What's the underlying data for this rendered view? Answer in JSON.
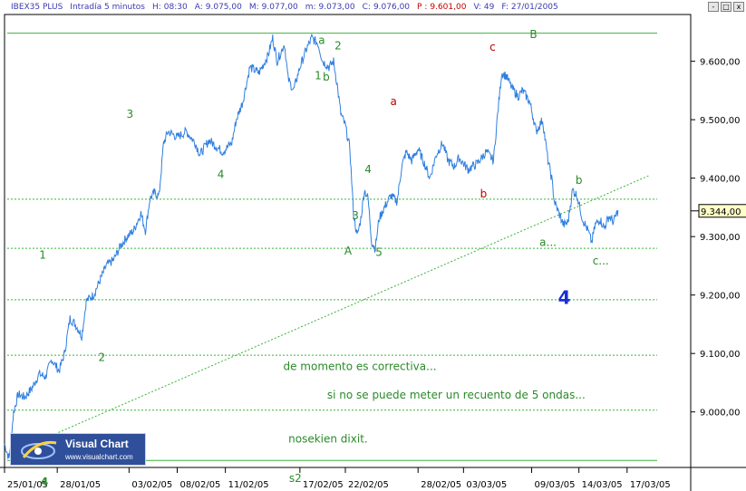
{
  "header": {
    "symbol": "IBEX35 PLUS",
    "interval": "Intradía 5 minutos",
    "fields": [
      {
        "label": "H:",
        "value": "08:30"
      },
      {
        "label": "A:",
        "value": "9.075,00"
      },
      {
        "label": "M:",
        "value": "9.077,00"
      },
      {
        "label": "m:",
        "value": "9.073,00"
      },
      {
        "label": "C:",
        "value": "9.076,00"
      }
    ],
    "p_label": "P :",
    "p_value": "9.601,00",
    "v_label": "V:",
    "v_value": "49",
    "f_label": "F:",
    "f_value": "27/01/2005"
  },
  "window_buttons": [
    "-",
    "□",
    "x"
  ],
  "logo": {
    "title": "Visual Chart",
    "url": "www.visualchart.com"
  },
  "chart_data": {
    "type": "line",
    "title": "",
    "xlabel": "",
    "ylabel": "",
    "ylim": [
      8905,
      9680
    ],
    "x_ticks": [
      "25/01/05",
      "28/01/05",
      "03/02/05",
      "08/02/05",
      "11/02/05",
      "17/02/05",
      "22/02/05",
      "28/02/05",
      "03/03/05",
      "09/03/05",
      "14/03/05",
      "17/03/05"
    ],
    "x_tick_index": [
      0,
      58,
      137,
      190,
      243,
      325,
      375,
      455,
      505,
      580,
      632,
      685
    ],
    "y_ticks": [
      9000,
      9100,
      9200,
      9300,
      9400,
      9500,
      9600
    ],
    "y_tick_labels": [
      "9.000,00",
      "9.100,00",
      "9.200,00",
      "9.300,00",
      "9.400,00",
      "9.500,00",
      "9.600,00"
    ],
    "last_price": 9344,
    "last_price_label": "9.344,00",
    "x_range": [
      0,
      755
    ],
    "series": [
      {
        "color": "#2f7fe0",
        "points": [
          [
            0,
            8945
          ],
          [
            5,
            8920
          ],
          [
            10,
            9000
          ],
          [
            15,
            9030
          ],
          [
            22,
            9025
          ],
          [
            30,
            9040
          ],
          [
            38,
            9065
          ],
          [
            45,
            9060
          ],
          [
            52,
            9090
          ],
          [
            60,
            9070
          ],
          [
            66,
            9100
          ],
          [
            72,
            9160
          ],
          [
            78,
            9150
          ],
          [
            85,
            9130
          ],
          [
            90,
            9190
          ],
          [
            98,
            9200
          ],
          [
            105,
            9225
          ],
          [
            112,
            9250
          ],
          [
            120,
            9260
          ],
          [
            128,
            9285
          ],
          [
            135,
            9300
          ],
          [
            142,
            9310
          ],
          [
            150,
            9340
          ],
          [
            155,
            9310
          ],
          [
            160,
            9365
          ],
          [
            165,
            9375
          ],
          [
            170,
            9370
          ],
          [
            175,
            9460
          ],
          [
            180,
            9480
          ],
          [
            190,
            9470
          ],
          [
            200,
            9480
          ],
          [
            210,
            9460
          ],
          [
            215,
            9440
          ],
          [
            225,
            9465
          ],
          [
            240,
            9445
          ],
          [
            250,
            9460
          ],
          [
            255,
            9500
          ],
          [
            262,
            9530
          ],
          [
            270,
            9590
          ],
          [
            280,
            9580
          ],
          [
            290,
            9610
          ],
          [
            295,
            9640
          ],
          [
            300,
            9600
          ],
          [
            308,
            9630
          ],
          [
            312,
            9570
          ],
          [
            318,
            9550
          ],
          [
            325,
            9590
          ],
          [
            332,
            9620
          ],
          [
            338,
            9640
          ],
          [
            345,
            9630
          ],
          [
            350,
            9600
          ],
          [
            357,
            9590
          ],
          [
            362,
            9600
          ],
          [
            366,
            9560
          ],
          [
            370,
            9510
          ],
          [
            375,
            9490
          ],
          [
            380,
            9450
          ],
          [
            384,
            9340
          ],
          [
            388,
            9300
          ],
          [
            392,
            9330
          ],
          [
            396,
            9380
          ],
          [
            400,
            9365
          ],
          [
            404,
            9290
          ],
          [
            408,
            9280
          ],
          [
            412,
            9330
          ],
          [
            418,
            9350
          ],
          [
            425,
            9370
          ],
          [
            432,
            9360
          ],
          [
            437,
            9420
          ],
          [
            442,
            9445
          ],
          [
            448,
            9430
          ],
          [
            455,
            9450
          ],
          [
            462,
            9425
          ],
          [
            468,
            9400
          ],
          [
            475,
            9440
          ],
          [
            482,
            9460
          ],
          [
            488,
            9430
          ],
          [
            495,
            9420
          ],
          [
            500,
            9435
          ],
          [
            510,
            9415
          ],
          [
            520,
            9425
          ],
          [
            530,
            9445
          ],
          [
            538,
            9430
          ],
          [
            542,
            9500
          ],
          [
            547,
            9580
          ],
          [
            552,
            9575
          ],
          [
            558,
            9555
          ],
          [
            565,
            9540
          ],
          [
            570,
            9550
          ],
          [
            578,
            9530
          ],
          [
            585,
            9480
          ],
          [
            592,
            9500
          ],
          [
            598,
            9430
          ],
          [
            602,
            9400
          ],
          [
            605,
            9360
          ],
          [
            610,
            9340
          ],
          [
            615,
            9320
          ],
          [
            620,
            9325
          ],
          [
            625,
            9380
          ],
          [
            630,
            9370
          ],
          [
            636,
            9330
          ],
          [
            642,
            9310
          ],
          [
            646,
            9290
          ],
          [
            650,
            9320
          ],
          [
            655,
            9330
          ],
          [
            660,
            9315
          ],
          [
            665,
            9335
          ],
          [
            670,
            9325
          ],
          [
            675,
            9345
          ]
        ]
      }
    ],
    "horizontal_lines": [
      {
        "y": 9648,
        "style": "solid"
      },
      {
        "y": 9364,
        "style": "dotted"
      },
      {
        "y": 9280,
        "style": "dotted"
      },
      {
        "y": 9192,
        "style": "dotted"
      },
      {
        "y": 9097,
        "style": "dotted"
      },
      {
        "y": 9003,
        "style": "dotted"
      },
      {
        "y": 8917,
        "style": "solid"
      }
    ],
    "trendline": {
      "from": [
        30,
        8945
      ],
      "to": [
        710,
        9405
      ]
    },
    "annotations": [
      {
        "text": "3",
        "x": 138,
        "y": 9503,
        "color": "#2a8a2a"
      },
      {
        "text": "4",
        "x": 238,
        "y": 9400,
        "color": "#2a8a2a"
      },
      {
        "text": "1",
        "x": 42,
        "y": 9262,
        "color": "#2a8a2a"
      },
      {
        "text": "2",
        "x": 107,
        "y": 9087,
        "color": "#2a8a2a"
      },
      {
        "text": "a",
        "x": 349,
        "y": 9630,
        "color": "#2a8a2a"
      },
      {
        "text": "2",
        "x": 367,
        "y": 9620,
        "color": "#2a8a2a"
      },
      {
        "text": "1",
        "x": 345,
        "y": 9569,
        "color": "#2a8a2a"
      },
      {
        "text": "b",
        "x": 354,
        "y": 9567,
        "color": "#2a8a2a"
      },
      {
        "text": "4",
        "x": 400,
        "y": 9409,
        "color": "#2a8a2a"
      },
      {
        "text": "3",
        "x": 386,
        "y": 9330,
        "color": "#2a8a2a"
      },
      {
        "text": "A",
        "x": 378,
        "y": 9269,
        "color": "#2a8a2a"
      },
      {
        "text": "5",
        "x": 412,
        "y": 9267,
        "color": "#2a8a2a"
      },
      {
        "text": "a",
        "x": 428,
        "y": 9525,
        "color": "#c00000"
      },
      {
        "text": "b",
        "x": 527,
        "y": 9367,
        "color": "#c00000"
      },
      {
        "text": "c",
        "x": 537,
        "y": 9618,
        "color": "#c00000"
      },
      {
        "text": "B",
        "x": 582,
        "y": 9640,
        "color": "#2a8a2a"
      },
      {
        "text": "b",
        "x": 632,
        "y": 9390,
        "color": "#2a8a2a"
      },
      {
        "text": "a...",
        "x": 598,
        "y": 9284,
        "color": "#2a8a2a"
      },
      {
        "text": "c...",
        "x": 656,
        "y": 9252,
        "color": "#2a8a2a"
      },
      {
        "text": "4",
        "x": 616,
        "y": 9185,
        "color": "#1a2fd6",
        "size": 20,
        "bold": true
      },
      {
        "text": "de momento es correctiva...",
        "x": 391,
        "y": 9072,
        "color": "#2a8a2a"
      },
      {
        "text": "si no se puede meter un recuento de 5 ondas...",
        "x": 497,
        "y": 9023,
        "color": "#2a8a2a"
      },
      {
        "text": "nosekien dixit.",
        "x": 356,
        "y": 8948,
        "color": "#2a8a2a"
      },
      {
        "text": "s2",
        "x": 320,
        "y": 8880,
        "color": "#2a8a2a"
      },
      {
        "text": "4",
        "x": 44,
        "y": 8874,
        "color": "#2a8a2a",
        "bold": true
      }
    ]
  }
}
